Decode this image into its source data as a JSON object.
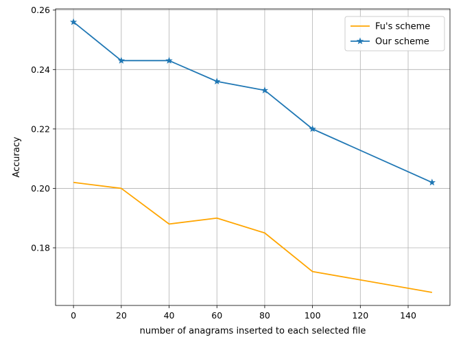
{
  "chart_data": {
    "type": "line",
    "title": "",
    "xlabel": "number of anagrams inserted to each selected file",
    "ylabel": "Accuracy",
    "xlim": [
      -7.5,
      157.5
    ],
    "ylim": [
      0.1606,
      0.2604
    ],
    "xticks": [
      0,
      20,
      40,
      60,
      80,
      100,
      120,
      140
    ],
    "xtick_labels": [
      "0",
      "20",
      "40",
      "60",
      "80",
      "100",
      "120",
      "140"
    ],
    "yticks": [
      0.18,
      0.2,
      0.22,
      0.24,
      0.26
    ],
    "ytick_labels": [
      "0.18",
      "0.20",
      "0.22",
      "0.24",
      "0.26"
    ],
    "grid": true,
    "legend_position": "top-right",
    "series": [
      {
        "name": "Fu's scheme",
        "color": "#ffa500",
        "marker": "none",
        "x": [
          0,
          20,
          40,
          60,
          80,
          100,
          150
        ],
        "y": [
          0.202,
          0.2,
          0.188,
          0.19,
          0.185,
          0.172,
          0.165
        ]
      },
      {
        "name": "Our scheme",
        "color": "#1f77b4",
        "marker": "star",
        "x": [
          0,
          20,
          40,
          60,
          80,
          100,
          150
        ],
        "y": [
          0.256,
          0.243,
          0.243,
          0.236,
          0.233,
          0.22,
          0.202
        ]
      }
    ]
  }
}
